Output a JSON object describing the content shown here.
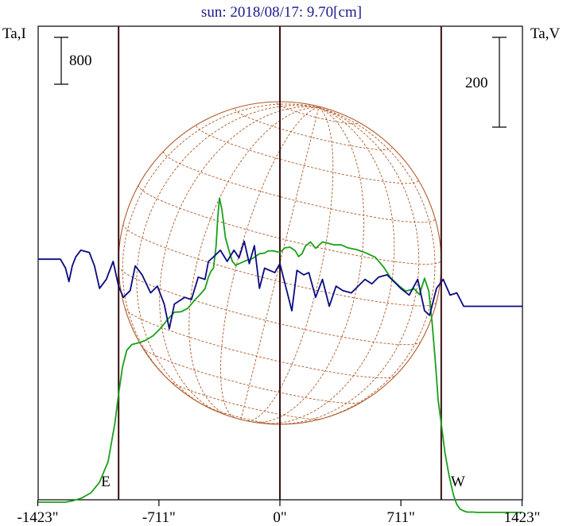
{
  "chart_data": {
    "type": "line",
    "title": "sun: 2018/08/17: 9.70[cm]",
    "left_axis_label": "Ta,I",
    "right_axis_label": "Ta,V",
    "left_scale_bar": {
      "label": "800",
      "value": 800
    },
    "right_scale_bar": {
      "label": "200",
      "value": 200
    },
    "x_ticks": [
      {
        "value": -1423,
        "label": "-1423\""
      },
      {
        "value": -711,
        "label": "-711\""
      },
      {
        "value": 0,
        "label": "0\""
      },
      {
        "value": 711,
        "label": "711\""
      },
      {
        "value": 1423,
        "label": "1423\""
      }
    ],
    "xlim": [
      -1423,
      1423
    ],
    "limb_lines": [
      {
        "x": -948,
        "label": "E"
      },
      {
        "x": 0,
        "label": ""
      },
      {
        "x": 948,
        "label": "W"
      }
    ],
    "colors": {
      "stokes_i": "#1aa01a",
      "stokes_v": "#0a0a80",
      "disk": "#b05a2a",
      "axis": "#000000",
      "limb": "#3a1010",
      "title": "#1a1a8c"
    },
    "series": [
      {
        "name": "I",
        "color": "#1aa01a",
        "x": [
          -1423,
          -1260,
          -1215,
          -1165,
          -1110,
          -1060,
          -1010,
          -970,
          -948,
          -925,
          -900,
          -870,
          -830,
          -790,
          -745,
          -700,
          -660,
          -620,
          -580,
          -540,
          -500,
          -470,
          -440,
          -420,
          -405,
          -390,
          -375,
          -365,
          -355,
          -340,
          -320,
          -300,
          -280,
          -260,
          -240,
          -200,
          -160,
          -120,
          -90,
          -70,
          -40,
          0,
          30,
          60,
          90,
          110,
          130,
          150,
          180,
          210,
          250,
          280,
          320,
          360,
          400,
          450,
          500,
          560,
          610,
          650,
          700,
          740,
          790,
          820,
          850,
          875,
          895,
          915,
          930,
          948,
          970,
          995,
          1020,
          1040,
          1060,
          1080,
          1100,
          1120,
          1140,
          1160,
          1423
        ],
        "y": [
          -40,
          -40,
          -15,
          30,
          120,
          300,
          650,
          1300,
          1800,
          2270,
          2550,
          2650,
          2680,
          2720,
          2800,
          2930,
          3080,
          3200,
          3210,
          3270,
          3410,
          3500,
          3600,
          3800,
          3900,
          3955,
          4340,
          4830,
          5150,
          4940,
          4470,
          4260,
          4070,
          4000,
          4030,
          4080,
          4120,
          4200,
          4210,
          4245,
          4250,
          4220,
          4300,
          4310,
          4250,
          4150,
          4200,
          4330,
          4400,
          4290,
          4400,
          4380,
          4350,
          4350,
          4300,
          4270,
          4220,
          4140,
          3970,
          3790,
          3650,
          3560,
          3600,
          3500,
          3780,
          3560,
          3010,
          2300,
          1700,
          1300,
          800,
          400,
          80,
          -80,
          -160,
          -190,
          -210,
          -210,
          -210,
          -215,
          -215
        ]
      },
      {
        "name": "V",
        "color": "#0a0a80",
        "x": [
          -1423,
          -1290,
          -1260,
          -1240,
          -1220,
          -1200,
          -1170,
          -1120,
          -1090,
          -1060,
          -1020,
          -980,
          -948,
          -920,
          -880,
          -850,
          -810,
          -760,
          -720,
          -680,
          -650,
          -620,
          -560,
          -520,
          -480,
          -440,
          -420,
          -390,
          -350,
          -310,
          -270,
          -240,
          -210,
          -180,
          -150,
          -120,
          -90,
          -60,
          -30,
          0,
          40,
          70,
          100,
          140,
          170,
          210,
          250,
          290,
          330,
          370,
          420,
          460,
          500,
          540,
          580,
          630,
          670,
          710,
          760,
          810,
          850,
          880,
          920,
          960,
          1000,
          1040,
          1080,
          1423
        ],
        "y": [
          5,
          5,
          -15,
          -45,
          -10,
          10,
          25,
          20,
          -10,
          -60,
          -40,
          0,
          -55,
          -80,
          -65,
          -10,
          -30,
          -70,
          -55,
          -95,
          -150,
          -95,
          -80,
          -85,
          -35,
          -40,
          0,
          10,
          25,
          0,
          25,
          8,
          45,
          -5,
          35,
          -60,
          -15,
          -20,
          -25,
          -5,
          -65,
          -110,
          -20,
          -30,
          -25,
          -80,
          -40,
          -100,
          -55,
          -65,
          -70,
          -55,
          -40,
          -50,
          -35,
          -30,
          -45,
          -60,
          -75,
          -40,
          -110,
          -120,
          -60,
          -40,
          -75,
          -70,
          -100,
          -100
        ]
      }
    ]
  }
}
